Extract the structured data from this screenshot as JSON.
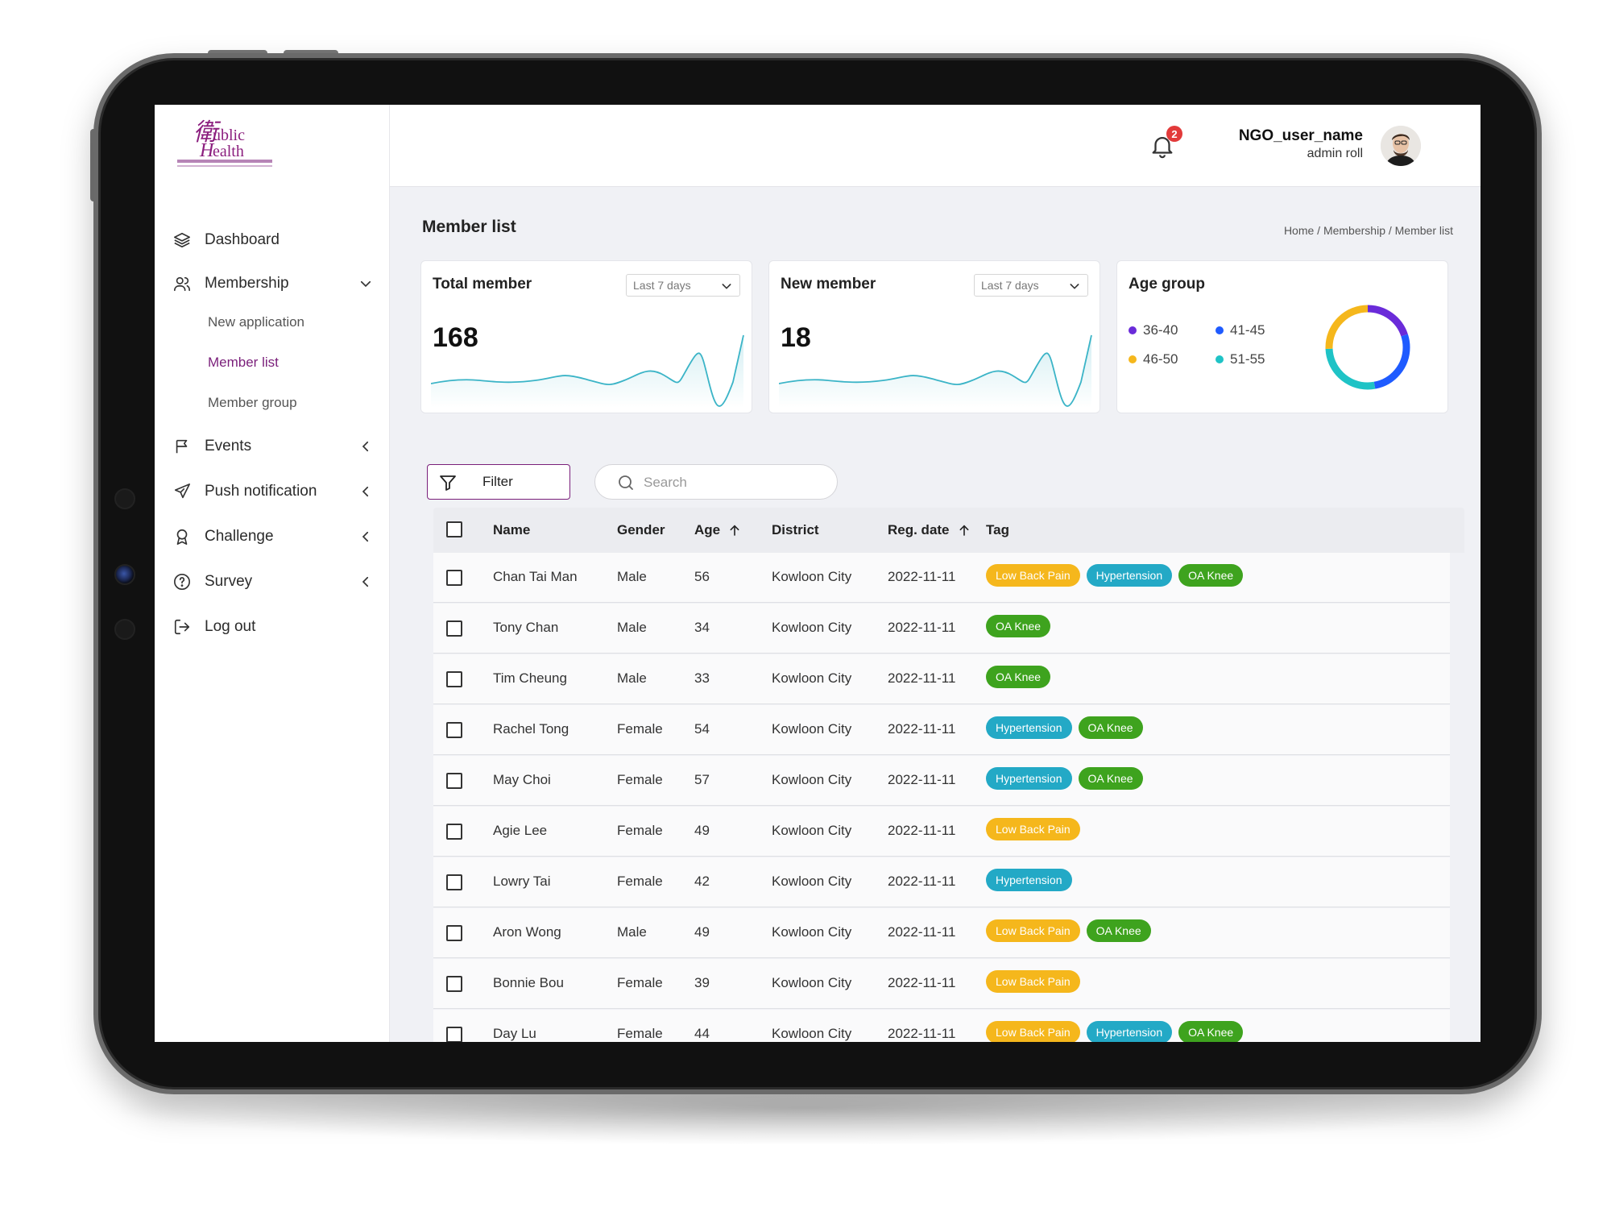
{
  "app": {
    "logo_alt": "Public Health"
  },
  "sidebar": {
    "items": [
      {
        "key": "dashboard",
        "label": "Dashboard",
        "icon": "layers-icon"
      },
      {
        "key": "membership",
        "label": "Membership",
        "icon": "users-icon",
        "expanded": true
      },
      {
        "key": "events",
        "label": "Events",
        "icon": "flag-icon"
      },
      {
        "key": "push",
        "label": "Push notification",
        "icon": "send-icon"
      },
      {
        "key": "challenge",
        "label": "Challenge",
        "icon": "award-icon"
      },
      {
        "key": "survey",
        "label": "Survey",
        "icon": "help-circle-icon"
      },
      {
        "key": "logout",
        "label": "Log out",
        "icon": "logout-icon"
      }
    ],
    "membership_sub": [
      {
        "label": "New application",
        "active": false
      },
      {
        "label": "Member list",
        "active": true
      },
      {
        "label": "Member group",
        "active": false
      }
    ]
  },
  "header": {
    "notification_count": "2",
    "user_name": "NGO_user_name",
    "user_role": "admin roll"
  },
  "page": {
    "title": "Member list",
    "breadcrumb": "Home / Membership / Member list"
  },
  "cards": {
    "total": {
      "title": "Total member",
      "range": "Last 7 days",
      "value": "168"
    },
    "new": {
      "title": "New member",
      "range": "Last 7 days",
      "value": "18"
    },
    "age": {
      "title": "Age group",
      "legend": [
        {
          "label": "36-40",
          "color": "#6a2bd9"
        },
        {
          "label": "41-45",
          "color": "#1f5bff"
        },
        {
          "label": "46-50",
          "color": "#f5b71c"
        },
        {
          "label": "51-55",
          "color": "#1fc3c6"
        }
      ]
    }
  },
  "toolbar": {
    "filter_label": "Filter",
    "search_placeholder": "Search"
  },
  "table": {
    "columns": {
      "name": "Name",
      "gender": "Gender",
      "age": "Age",
      "district": "District",
      "reg_date": "Reg. date",
      "tag": "Tag"
    },
    "rows": [
      {
        "name": "Chan Tai Man",
        "gender": "Male",
        "age": "56",
        "district": "Kowloon City",
        "reg_date": "2022-11-11",
        "tags": [
          "Low Back Pain",
          "Hypertension",
          "OA Knee"
        ]
      },
      {
        "name": "Tony Chan",
        "gender": "Male",
        "age": "34",
        "district": "Kowloon City",
        "reg_date": "2022-11-11",
        "tags": [
          "OA Knee"
        ]
      },
      {
        "name": "Tim Cheung",
        "gender": "Male",
        "age": "33",
        "district": "Kowloon City",
        "reg_date": "2022-11-11",
        "tags": [
          "OA Knee"
        ]
      },
      {
        "name": "Rachel Tong",
        "gender": "Female",
        "age": "54",
        "district": "Kowloon City",
        "reg_date": "2022-11-11",
        "tags": [
          "Hypertension",
          "OA Knee"
        ]
      },
      {
        "name": "May Choi",
        "gender": "Female",
        "age": "57",
        "district": "Kowloon City",
        "reg_date": "2022-11-11",
        "tags": [
          "Hypertension",
          "OA Knee"
        ]
      },
      {
        "name": "Agie Lee",
        "gender": "Female",
        "age": "49",
        "district": "Kowloon City",
        "reg_date": "2022-11-11",
        "tags": [
          "Low Back Pain"
        ]
      },
      {
        "name": "Lowry Tai",
        "gender": "Female",
        "age": "42",
        "district": "Kowloon City",
        "reg_date": "2022-11-11",
        "tags": [
          "Hypertension"
        ]
      },
      {
        "name": "Aron Wong",
        "gender": "Male",
        "age": "49",
        "district": "Kowloon City",
        "reg_date": "2022-11-11",
        "tags": [
          "Low Back Pain",
          "OA Knee"
        ]
      },
      {
        "name": "Bonnie Bou",
        "gender": "Female",
        "age": "39",
        "district": "Kowloon City",
        "reg_date": "2022-11-11",
        "tags": [
          "Low Back Pain"
        ]
      },
      {
        "name": "Day Lu",
        "gender": "Female",
        "age": "44",
        "district": "Kowloon City",
        "reg_date": "2022-11-11",
        "tags": [
          "Low Back Pain",
          "Hypertension",
          "OA Knee"
        ]
      }
    ]
  },
  "colors": {
    "accent": "#7a1f7a",
    "tag_low_back_pain": "#f5b71c",
    "tag_hypertension": "#23a9c6",
    "tag_oa_knee": "#3ea31e",
    "sparkline": "#3bb4c7"
  }
}
